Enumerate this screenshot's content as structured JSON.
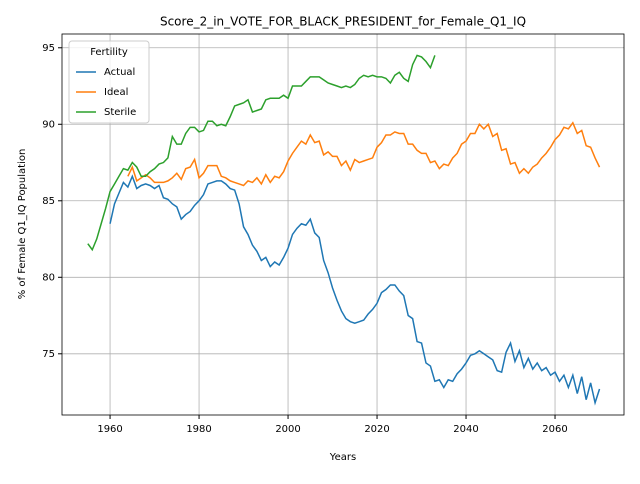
{
  "chart_data": {
    "type": "line",
    "title": "Score_2_in_VOTE_FOR_BLACK_PRESIDENT_for_Female_Q1_IQ",
    "x_label": "Years",
    "y_label": "% of Female Q1_IQ Population",
    "legend_title": "Fertility",
    "legend_loc": "upper left",
    "grid": true,
    "xlim": [
      1949.2,
      2075.5
    ],
    "xticks": [
      1960,
      1980,
      2000,
      2020,
      2040,
      2060
    ],
    "ylim": [
      71.0,
      95.9
    ],
    "yticks": [
      75,
      80,
      85,
      90,
      95
    ],
    "x": [
      1955,
      1956,
      1957,
      1958,
      1959,
      1960,
      1961,
      1962,
      1963,
      1964,
      1965,
      1966,
      1967,
      1968,
      1969,
      1970,
      1971,
      1972,
      1973,
      1974,
      1975,
      1976,
      1977,
      1978,
      1979,
      1980,
      1981,
      1982,
      1983,
      1984,
      1985,
      1986,
      1987,
      1988,
      1989,
      1990,
      1991,
      1992,
      1993,
      1994,
      1995,
      1996,
      1997,
      1998,
      1999,
      2000,
      2001,
      2002,
      2003,
      2004,
      2005,
      2006,
      2007,
      2008,
      2009,
      2010,
      2011,
      2012,
      2013,
      2014,
      2015,
      2016,
      2017,
      2018,
      2019,
      2020,
      2021,
      2022,
      2023,
      2024,
      2025,
      2026,
      2027,
      2028,
      2029,
      2030,
      2031,
      2032,
      2033,
      2034,
      2035,
      2036,
      2037,
      2038,
      2039,
      2040,
      2041,
      2042,
      2043,
      2044,
      2045,
      2046,
      2047,
      2048,
      2049,
      2050,
      2051,
      2052,
      2053,
      2054,
      2055,
      2056,
      2057,
      2058,
      2059,
      2060,
      2061,
      2062,
      2063,
      2064,
      2065,
      2066,
      2067,
      2068,
      2069,
      2070
    ],
    "series": [
      {
        "name": "Actual",
        "color": "#1f77b4",
        "values": [
          null,
          null,
          null,
          null,
          null,
          83.5,
          84.8,
          85.5,
          86.2,
          85.9,
          86.6,
          85.8,
          86.0,
          86.1,
          86.0,
          85.8,
          86.0,
          85.2,
          85.1,
          84.8,
          84.6,
          83.8,
          84.1,
          84.3,
          84.7,
          85.0,
          85.4,
          86.1,
          86.2,
          86.3,
          86.3,
          86.1,
          85.8,
          85.7,
          84.8,
          83.3,
          82.8,
          82.1,
          81.7,
          81.1,
          81.3,
          80.7,
          81.0,
          80.8,
          81.3,
          81.9,
          82.8,
          83.2,
          83.5,
          83.4,
          83.8,
          82.9,
          82.6,
          81.1,
          80.3,
          79.3,
          78.5,
          77.8,
          77.3,
          77.1,
          77.0,
          77.1,
          77.2,
          77.6,
          77.9,
          78.3,
          79.0,
          79.2,
          79.5,
          79.5,
          79.1,
          78.8,
          77.5,
          77.3,
          75.8,
          75.7,
          74.4,
          74.2,
          73.2,
          73.3,
          72.8,
          73.3,
          73.2,
          73.7,
          74.0,
          74.4,
          74.9,
          75.0,
          75.2,
          75.0,
          74.8,
          74.6,
          73.9,
          73.8,
          75.1,
          75.7,
          74.5,
          75.2,
          74.1,
          74.7,
          74.0,
          74.4,
          73.9,
          74.1,
          73.6,
          73.8,
          73.2,
          73.6,
          72.8,
          73.6,
          72.4,
          73.5,
          72.0,
          73.1,
          71.8,
          72.7
        ]
      },
      {
        "name": "Ideal",
        "color": "#ff7f0e",
        "values": [
          null,
          null,
          null,
          null,
          null,
          null,
          null,
          null,
          null,
          86.6,
          87.2,
          86.3,
          86.5,
          86.7,
          86.5,
          86.2,
          86.2,
          86.2,
          86.3,
          86.5,
          86.8,
          86.4,
          87.1,
          87.2,
          87.7,
          86.5,
          86.8,
          87.3,
          87.3,
          87.3,
          86.6,
          86.5,
          86.3,
          86.2,
          86.1,
          86.0,
          86.3,
          86.2,
          86.5,
          86.1,
          86.7,
          86.2,
          86.6,
          86.5,
          86.9,
          87.6,
          88.1,
          88.5,
          88.9,
          88.7,
          89.3,
          88.8,
          88.9,
          88.0,
          88.2,
          87.9,
          87.9,
          87.3,
          87.6,
          87.0,
          87.7,
          87.5,
          87.6,
          87.7,
          87.8,
          88.5,
          88.8,
          89.3,
          89.3,
          89.5,
          89.4,
          89.4,
          88.7,
          88.7,
          88.3,
          88.1,
          88.1,
          87.5,
          87.6,
          87.1,
          87.4,
          87.3,
          87.8,
          88.1,
          88.7,
          88.9,
          89.4,
          89.4,
          90.0,
          89.7,
          90.0,
          89.2,
          89.4,
          88.3,
          88.4,
          87.4,
          87.5,
          86.8,
          87.1,
          86.8,
          87.2,
          87.4,
          87.8,
          88.1,
          88.5,
          89.0,
          89.3,
          89.8,
          89.7,
          90.1,
          89.4,
          89.6,
          88.6,
          88.5,
          87.8,
          87.2
        ]
      },
      {
        "name": "Sterile",
        "color": "#2ca02c",
        "values": [
          82.2,
          81.8,
          82.5,
          83.5,
          84.5,
          85.6,
          86.1,
          86.6,
          87.1,
          87.0,
          87.5,
          87.2,
          86.6,
          86.6,
          86.9,
          87.1,
          87.4,
          87.5,
          87.8,
          89.2,
          88.7,
          88.7,
          89.4,
          89.8,
          89.8,
          89.5,
          89.6,
          90.2,
          90.2,
          89.9,
          90.0,
          89.9,
          90.5,
          91.2,
          91.3,
          91.4,
          91.6,
          90.8,
          90.9,
          91.0,
          91.6,
          91.7,
          91.7,
          91.7,
          91.9,
          91.7,
          92.5,
          92.5,
          92.5,
          92.8,
          93.1,
          93.1,
          93.1,
          92.9,
          92.7,
          92.6,
          92.5,
          92.4,
          92.5,
          92.4,
          92.6,
          93.0,
          93.2,
          93.1,
          93.2,
          93.1,
          93.1,
          93.0,
          92.7,
          93.2,
          93.4,
          93.0,
          92.8,
          93.9,
          94.5,
          94.4,
          94.1,
          93.7,
          94.5,
          null,
          null,
          null,
          null,
          null,
          null,
          null,
          null,
          null,
          null,
          null,
          null,
          null,
          null,
          null,
          null,
          null,
          null,
          null,
          null,
          null,
          null,
          null,
          null,
          null,
          null,
          null,
          null,
          null,
          null,
          null,
          null,
          null,
          null,
          null,
          null,
          null
        ]
      }
    ]
  }
}
